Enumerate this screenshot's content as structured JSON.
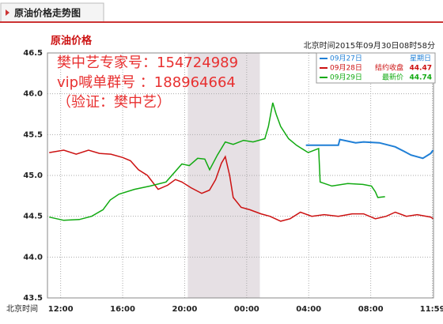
{
  "tab_title": "原油价格走势图",
  "chart_data": {
    "type": "line",
    "title": "原油价格",
    "timestamp": "北京时间2015年09月30日08时58分",
    "watermark": [
      "樊中艺专家号：154724989",
      "vip喊单群号 ：188964664",
      "（验证：樊中艺）"
    ],
    "x_label": "北京时间",
    "xlim": [
      11.15,
      36.05
    ],
    "xticks": [
      {
        "value": 12,
        "label": "12:00"
      },
      {
        "value": 16,
        "label": "16:00"
      },
      {
        "value": 20,
        "label": "20:00"
      },
      {
        "value": 24,
        "label": "00:00"
      },
      {
        "value": 28,
        "label": "04:00"
      },
      {
        "value": 32,
        "label": "08:00"
      },
      {
        "value": 35.983,
        "label": "11:59"
      }
    ],
    "ylim": [
      43.5,
      46.5
    ],
    "yticks": [
      43.5,
      {
        "value": 44,
        "label": "44.0"
      },
      44.5,
      {
        "value": 45,
        "label": "45.0"
      },
      45.5,
      {
        "value": 46,
        "label": "46.0"
      },
      46.5
    ],
    "grid": true,
    "shade": [
      20.2,
      24.85
    ],
    "legend": "upper right",
    "series": [
      {
        "name": "09月27日",
        "legend_note": "星期日",
        "color": "#1f7fd6",
        "x": [
          27.82,
          29.91,
          30.01,
          30.52,
          31.03,
          31.54,
          32.56,
          33.58,
          34.1,
          34.6,
          35.36,
          35.87,
          36.02
        ],
        "values": [
          45.37,
          45.37,
          45.44,
          45.42,
          45.4,
          45.41,
          45.4,
          45.35,
          45.3,
          45.25,
          45.21,
          45.27,
          45.31
        ]
      },
      {
        "name": "09月28日",
        "legend_note": "结约收盘",
        "legend_value": 44.47,
        "color": "#cc1111",
        "x": [
          11.26,
          12.2,
          13.0,
          13.8,
          14.5,
          15.24,
          16.0,
          16.5,
          17.02,
          17.6,
          18.29,
          18.9,
          19.4,
          19.82,
          20.4,
          21.1,
          21.6,
          22.0,
          22.37,
          22.62,
          22.9,
          23.13,
          23.64,
          24.2,
          24.92,
          25.5,
          26.19,
          26.8,
          27.47,
          28.2,
          29.0,
          29.91,
          30.8,
          31.54,
          32.3,
          33.0,
          33.58,
          34.3,
          35.0,
          35.87,
          36.02
        ],
        "values": [
          45.28,
          45.31,
          45.26,
          45.31,
          45.27,
          45.26,
          45.22,
          45.18,
          45.07,
          45.0,
          44.83,
          44.88,
          44.95,
          44.92,
          44.85,
          44.78,
          44.82,
          44.95,
          45.15,
          45.23,
          45.0,
          44.73,
          44.61,
          44.58,
          44.53,
          44.5,
          44.44,
          44.47,
          44.55,
          44.5,
          44.52,
          44.5,
          44.53,
          44.53,
          44.47,
          44.5,
          44.55,
          44.5,
          44.52,
          44.49,
          44.47
        ]
      },
      {
        "name": "09月29日",
        "legend_note": "最新价",
        "legend_value": 44.74,
        "color": "#11aa11",
        "x": [
          11.26,
          12.2,
          13.2,
          14.0,
          14.73,
          15.2,
          15.75,
          16.76,
          17.78,
          18.8,
          19.82,
          20.3,
          20.84,
          21.3,
          21.61,
          22.11,
          22.62,
          23.13,
          23.8,
          24.41,
          25.17,
          25.4,
          25.68,
          25.9,
          26.19,
          26.7,
          27.21,
          27.97,
          28.64,
          28.74,
          29.5,
          30.52,
          31.5,
          32.05,
          32.3,
          32.46,
          32.92
        ],
        "values": [
          44.49,
          44.45,
          44.46,
          44.5,
          44.58,
          44.7,
          44.77,
          44.83,
          44.87,
          44.92,
          45.14,
          45.12,
          45.21,
          45.2,
          45.07,
          45.25,
          45.41,
          45.38,
          45.43,
          45.41,
          45.45,
          45.6,
          45.89,
          45.75,
          45.6,
          45.45,
          45.37,
          45.28,
          45.33,
          44.92,
          44.87,
          44.9,
          44.89,
          44.87,
          44.8,
          44.73,
          44.74
        ]
      }
    ]
  }
}
